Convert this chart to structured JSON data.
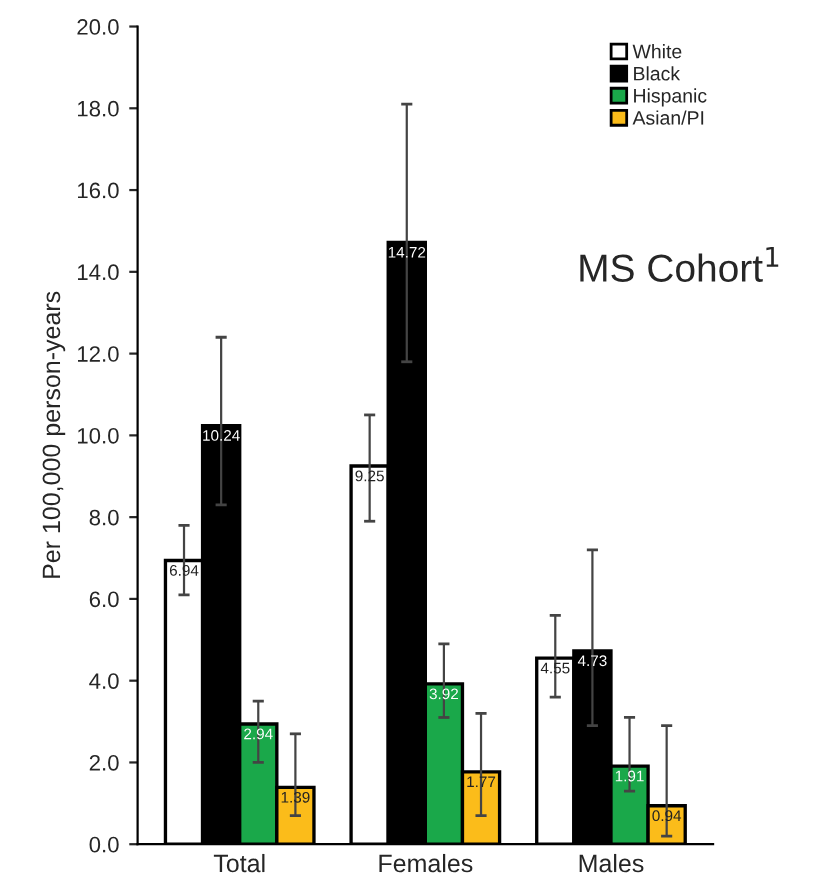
{
  "chart_data": {
    "type": "bar",
    "ylabel": "Per 100,000 person-years",
    "categories": [
      "Total",
      "Females",
      "Males"
    ],
    "series": [
      {
        "name": "White",
        "color": "#ffffff",
        "values": [
          6.94,
          9.25,
          4.55
        ],
        "errors": [
          [
            6.1,
            7.8
          ],
          [
            7.9,
            10.5
          ],
          [
            3.6,
            5.6
          ]
        ]
      },
      {
        "name": "Black",
        "color": "#000000",
        "values": [
          10.24,
          14.72,
          4.73
        ],
        "errors": [
          [
            8.3,
            12.4
          ],
          [
            11.8,
            18.1
          ],
          [
            2.9,
            7.2
          ]
        ]
      },
      {
        "name": "Hispanic",
        "color": "#1aa84a",
        "values": [
          2.94,
          3.92,
          1.91
        ],
        "errors": [
          [
            2.0,
            3.5
          ],
          [
            3.1,
            4.9
          ],
          [
            1.3,
            3.1
          ]
        ]
      },
      {
        "name": "Asian/PI",
        "color": "#fbbc1a",
        "values": [
          1.39,
          1.77,
          0.94
        ],
        "errors": [
          [
            0.7,
            2.7
          ],
          [
            0.7,
            3.2
          ],
          [
            0.2,
            2.9
          ]
        ]
      }
    ],
    "ylim": [
      0,
      20
    ],
    "yticks": [
      {
        "value": 0,
        "label": "0.0"
      },
      {
        "value": 2,
        "label": "2.0"
      },
      {
        "value": 4,
        "label": "4.0"
      },
      {
        "value": 6,
        "label": "6.0"
      },
      {
        "value": 8,
        "label": "8.0"
      },
      {
        "value": 10,
        "label": "10.0"
      },
      {
        "value": 12,
        "label": "12.0"
      },
      {
        "value": 14,
        "label": "14.0"
      },
      {
        "value": 16,
        "label": "16.0"
      },
      {
        "value": 18,
        "label": "18.0"
      },
      {
        "value": 20,
        "label": "20.0"
      }
    ],
    "data_labels": true,
    "legend": "top right",
    "grid": false,
    "annotations": [
      "MS Cohort$^{1}$"
    ]
  }
}
